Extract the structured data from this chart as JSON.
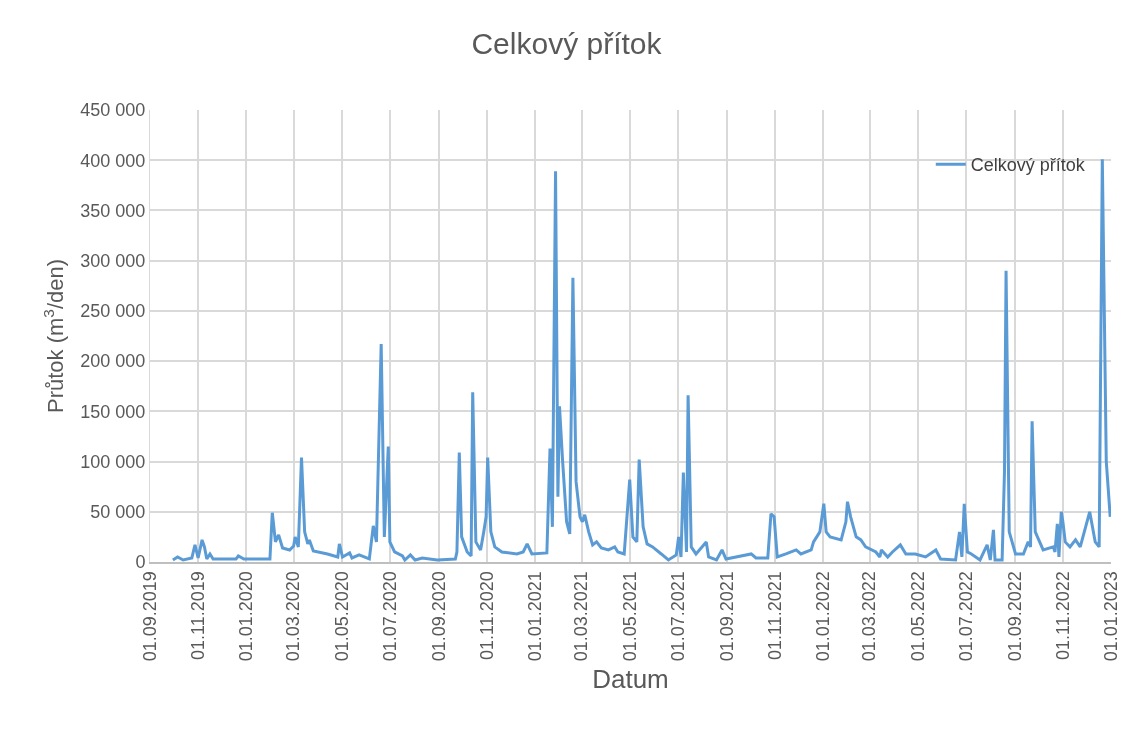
{
  "chart_data": {
    "type": "line",
    "title": "Celkový přítok",
    "xlabel": "Datum",
    "ylabel": "Průtok (m$^{3}$/den)",
    "x": [
      "2019-09-30",
      "2019-10-06",
      "2019-10-13",
      "2019-10-24",
      "2019-10-28",
      "2019-11-01",
      "2019-11-06",
      "2019-11-09",
      "2019-11-12",
      "2019-11-16",
      "2019-11-20",
      "2019-12-19",
      "2019-12-22",
      "2019-12-29",
      "2020-01-31",
      "2020-02-03",
      "2020-02-07",
      "2020-02-11",
      "2020-02-16",
      "2020-02-25",
      "2020-03-01",
      "2020-03-03",
      "2020-03-07",
      "2020-03-11",
      "2020-03-15",
      "2020-03-19",
      "2020-03-21",
      "2020-03-26",
      "2020-04-13",
      "2020-04-26",
      "2020-04-28",
      "2020-05-02",
      "2020-05-11",
      "2020-05-14",
      "2020-05-23",
      "2020-06-05",
      "2020-06-10",
      "2020-06-14",
      "2020-06-20",
      "2020-06-24",
      "2020-06-29",
      "2020-07-01",
      "2020-07-07",
      "2020-07-17",
      "2020-07-20",
      "2020-07-27",
      "2020-08-02",
      "2020-08-11",
      "2020-08-30",
      "2020-09-22",
      "2020-09-24",
      "2020-09-27",
      "2020-09-30",
      "2020-10-07",
      "2020-10-12",
      "2020-10-14",
      "2020-10-18",
      "2020-10-24",
      "2020-10-28",
      "2020-10-31",
      "2020-11-02",
      "2020-11-06",
      "2020-11-11",
      "2020-11-20",
      "2020-12-09",
      "2020-12-17",
      "2020-12-22",
      "2020-12-28",
      "2021-01-16",
      "2021-01-20",
      "2021-01-23",
      "2021-01-27",
      "2021-01-30",
      "2021-02-01",
      "2021-02-05",
      "2021-02-10",
      "2021-02-14",
      "2021-02-18",
      "2021-02-22",
      "2021-02-27",
      "2021-03-02",
      "2021-03-05",
      "2021-03-10",
      "2021-03-15",
      "2021-03-20",
      "2021-03-26",
      "2021-04-04",
      "2021-04-12",
      "2021-04-16",
      "2021-04-24",
      "2021-05-01",
      "2021-05-05",
      "2021-05-10",
      "2021-05-13",
      "2021-05-18",
      "2021-05-23",
      "2021-05-30",
      "2021-06-10",
      "2021-06-19",
      "2021-06-29",
      "2021-07-02",
      "2021-07-05",
      "2021-07-08",
      "2021-07-12",
      "2021-07-14",
      "2021-07-18",
      "2021-07-24",
      "2021-08-06",
      "2021-08-09",
      "2021-08-19",
      "2021-08-26",
      "2021-08-31",
      "2021-10-02",
      "2021-10-08",
      "2021-10-23",
      "2021-10-27",
      "2021-10-31",
      "2021-11-04",
      "2021-11-15",
      "2021-11-28",
      "2021-12-04",
      "2021-12-17",
      "2021-12-20",
      "2021-12-28",
      "2022-01-02",
      "2022-01-05",
      "2022-01-10",
      "2022-01-24",
      "2022-01-30",
      "2022-02-01",
      "2022-02-05",
      "2022-02-12",
      "2022-02-18",
      "2022-02-24",
      "2022-03-09",
      "2022-03-14",
      "2022-03-16",
      "2022-03-24",
      "2022-03-30",
      "2022-04-09",
      "2022-04-16",
      "2022-04-28",
      "2022-05-11",
      "2022-05-24",
      "2022-05-30",
      "2022-06-18",
      "2022-06-23",
      "2022-06-26",
      "2022-06-29",
      "2022-07-03",
      "2022-07-08",
      "2022-07-19",
      "2022-07-28",
      "2022-08-01",
      "2022-08-05",
      "2022-08-07",
      "2022-08-16",
      "2022-08-19",
      "2022-08-21",
      "2022-08-25",
      "2022-09-02",
      "2022-09-12",
      "2022-09-18",
      "2022-09-21",
      "2022-09-23",
      "2022-09-27",
      "2022-10-07",
      "2022-10-20",
      "2022-10-22",
      "2022-10-25",
      "2022-10-27",
      "2022-10-30",
      "2022-11-01",
      "2022-11-04",
      "2022-11-10",
      "2022-11-17",
      "2022-11-23",
      "2022-12-05",
      "2022-12-12",
      "2022-12-17",
      "2022-12-21",
      "2022-12-26",
      "2022-12-31"
    ],
    "series": [
      {
        "name": "Celkový přítok",
        "color": "#5b9bd5",
        "values": [
          2000,
          5000,
          2000,
          4000,
          17000,
          4000,
          22000,
          15000,
          3000,
          8000,
          3000,
          3000,
          6000,
          3000,
          3000,
          49000,
          20000,
          27000,
          14000,
          12000,
          16000,
          25000,
          15000,
          104000,
          30000,
          18000,
          22000,
          11000,
          8000,
          5000,
          18000,
          5000,
          9000,
          4000,
          7000,
          3000,
          36000,
          20000,
          217000,
          25000,
          115000,
          20000,
          10000,
          6000,
          2000,
          7000,
          2000,
          4000,
          2000,
          3000,
          10000,
          109000,
          25000,
          10000,
          6000,
          169000,
          20000,
          12000,
          30000,
          45000,
          104000,
          30000,
          15000,
          10000,
          8000,
          10000,
          18000,
          8000,
          9000,
          113000,
          35000,
          389000,
          65000,
          155000,
          100000,
          40000,
          28000,
          283000,
          80000,
          45000,
          40000,
          47000,
          30000,
          17000,
          20000,
          14000,
          12000,
          15000,
          10000,
          8000,
          82000,
          25000,
          20000,
          102000,
          35000,
          18000,
          15000,
          8000,
          2000,
          7000,
          25000,
          5000,
          89000,
          10000,
          166000,
          15000,
          8000,
          20000,
          5000,
          2000,
          12000,
          3000,
          8000,
          4000,
          4000,
          48000,
          45000,
          5000,
          8000,
          12000,
          8000,
          12000,
          20000,
          30000,
          58000,
          30000,
          25000,
          22000,
          40000,
          60000,
          45000,
          25000,
          22000,
          15000,
          10000,
          5000,
          12000,
          5000,
          10000,
          17000,
          8000,
          8000,
          5000,
          12000,
          3000,
          2000,
          30000,
          5000,
          58000,
          10000,
          8000,
          2000,
          17000,
          2000,
          32000,
          2000,
          2000,
          90000,
          290000,
          30000,
          8000,
          8000,
          20000,
          15000,
          140000,
          30000,
          12000,
          15000,
          10000,
          38000,
          5000,
          50000,
          40000,
          20000,
          15000,
          22000,
          15000,
          50000,
          20000,
          15000,
          401000,
          100000,
          45000
        ]
      }
    ],
    "xlim": [
      "2019-09-01",
      "2023-01-01"
    ],
    "xticks": [
      {
        "value": "2019-09-01",
        "label": "01.09.2019"
      },
      {
        "value": "2019-11-01",
        "label": "01.11.2019"
      },
      {
        "value": "2020-01-01",
        "label": "01.01.2020"
      },
      {
        "value": "2020-03-01",
        "label": "01.03.2020"
      },
      {
        "value": "2020-05-01",
        "label": "01.05.2020"
      },
      {
        "value": "2020-07-01",
        "label": "01.07.2020"
      },
      {
        "value": "2020-09-01",
        "label": "01.09.2020"
      },
      {
        "value": "2020-11-01",
        "label": "01.11.2020"
      },
      {
        "value": "2021-01-01",
        "label": "01.01.2021"
      },
      {
        "value": "2021-03-01",
        "label": "01.03.2021"
      },
      {
        "value": "2021-05-01",
        "label": "01.05.2021"
      },
      {
        "value": "2021-07-01",
        "label": "01.07.2021"
      },
      {
        "value": "2021-09-01",
        "label": "01.09.2021"
      },
      {
        "value": "2021-11-01",
        "label": "01.11.2021"
      },
      {
        "value": "2022-01-01",
        "label": "01.01.2022"
      },
      {
        "value": "2022-03-01",
        "label": "01.03.2022"
      },
      {
        "value": "2022-05-01",
        "label": "01.05.2022"
      },
      {
        "value": "2022-07-01",
        "label": "01.07.2022"
      },
      {
        "value": "2022-09-01",
        "label": "01.09.2022"
      },
      {
        "value": "2022-11-01",
        "label": "01.11.2022"
      },
      {
        "value": "2023-01-01",
        "label": "01.01.2023"
      }
    ],
    "ylim": [
      0,
      450000
    ],
    "yticks": [
      {
        "value": 0,
        "label": "0"
      },
      {
        "value": 50000,
        "label": "50 000"
      },
      {
        "value": 100000,
        "label": "100 000"
      },
      {
        "value": 150000,
        "label": "150 000"
      },
      {
        "value": 200000,
        "label": "200 000"
      },
      {
        "value": 250000,
        "label": "250 000"
      },
      {
        "value": 300000,
        "label": "300 000"
      },
      {
        "value": 350000,
        "label": "350 000"
      },
      {
        "value": 400000,
        "label": "400 000"
      },
      {
        "value": 450000,
        "label": "450 000"
      }
    ],
    "grid": true,
    "legend": "top right",
    "marker": "none",
    "line_style": "solid"
  }
}
